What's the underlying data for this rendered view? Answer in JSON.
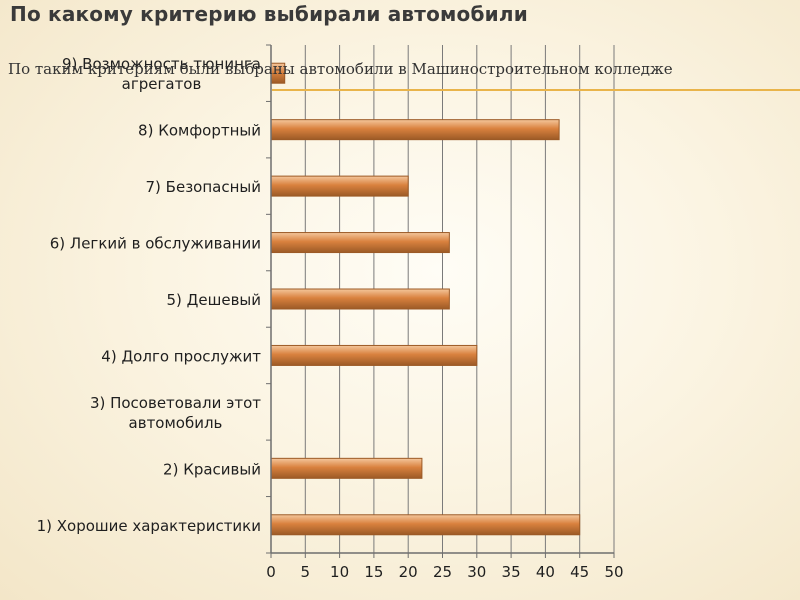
{
  "slide": {
    "title": "По какому критерию выбирали автомобили",
    "overlay_text": "По таким критериям были выбраны автомобили в Машиностроительном колледже",
    "accent_line_color": "#e9b44a"
  },
  "chart_data": {
    "type": "bar",
    "orientation": "horizontal",
    "categories": [
      "9) Возможность тюнинга агрегатов",
      "8) Комфортный",
      "7) Безопасный",
      "6) Легкий в обслуживании",
      "5) Дешевый",
      "4) Долго прослужит",
      "3) Посоветовали этот автомобиль",
      "2) Красивый",
      "1) Хорошие характеристики"
    ],
    "category_lines": [
      [
        "9) Возможность тюнинга",
        "агрегатов"
      ],
      [
        "8) Комфортный"
      ],
      [
        "7) Безопасный"
      ],
      [
        "6) Легкий в обслуживании"
      ],
      [
        "5) Дешевый"
      ],
      [
        "4) Долго прослужит"
      ],
      [
        "3) Посоветовали этот",
        "автомобиль"
      ],
      [
        "2) Красивый"
      ],
      [
        "1) Хорошие характеристики"
      ]
    ],
    "values": [
      2,
      42,
      20,
      26,
      26,
      30,
      0,
      22,
      45
    ],
    "xlim": [
      0,
      50
    ],
    "xticks": [
      "0",
      "5",
      "10",
      "15",
      "20",
      "25",
      "30",
      "35",
      "40",
      "45",
      "50"
    ],
    "grid": true,
    "legend": "none",
    "bar_color": "#d9813e",
    "bar_highlight": "#f4c79c",
    "bar_border": "#9c5a26"
  }
}
